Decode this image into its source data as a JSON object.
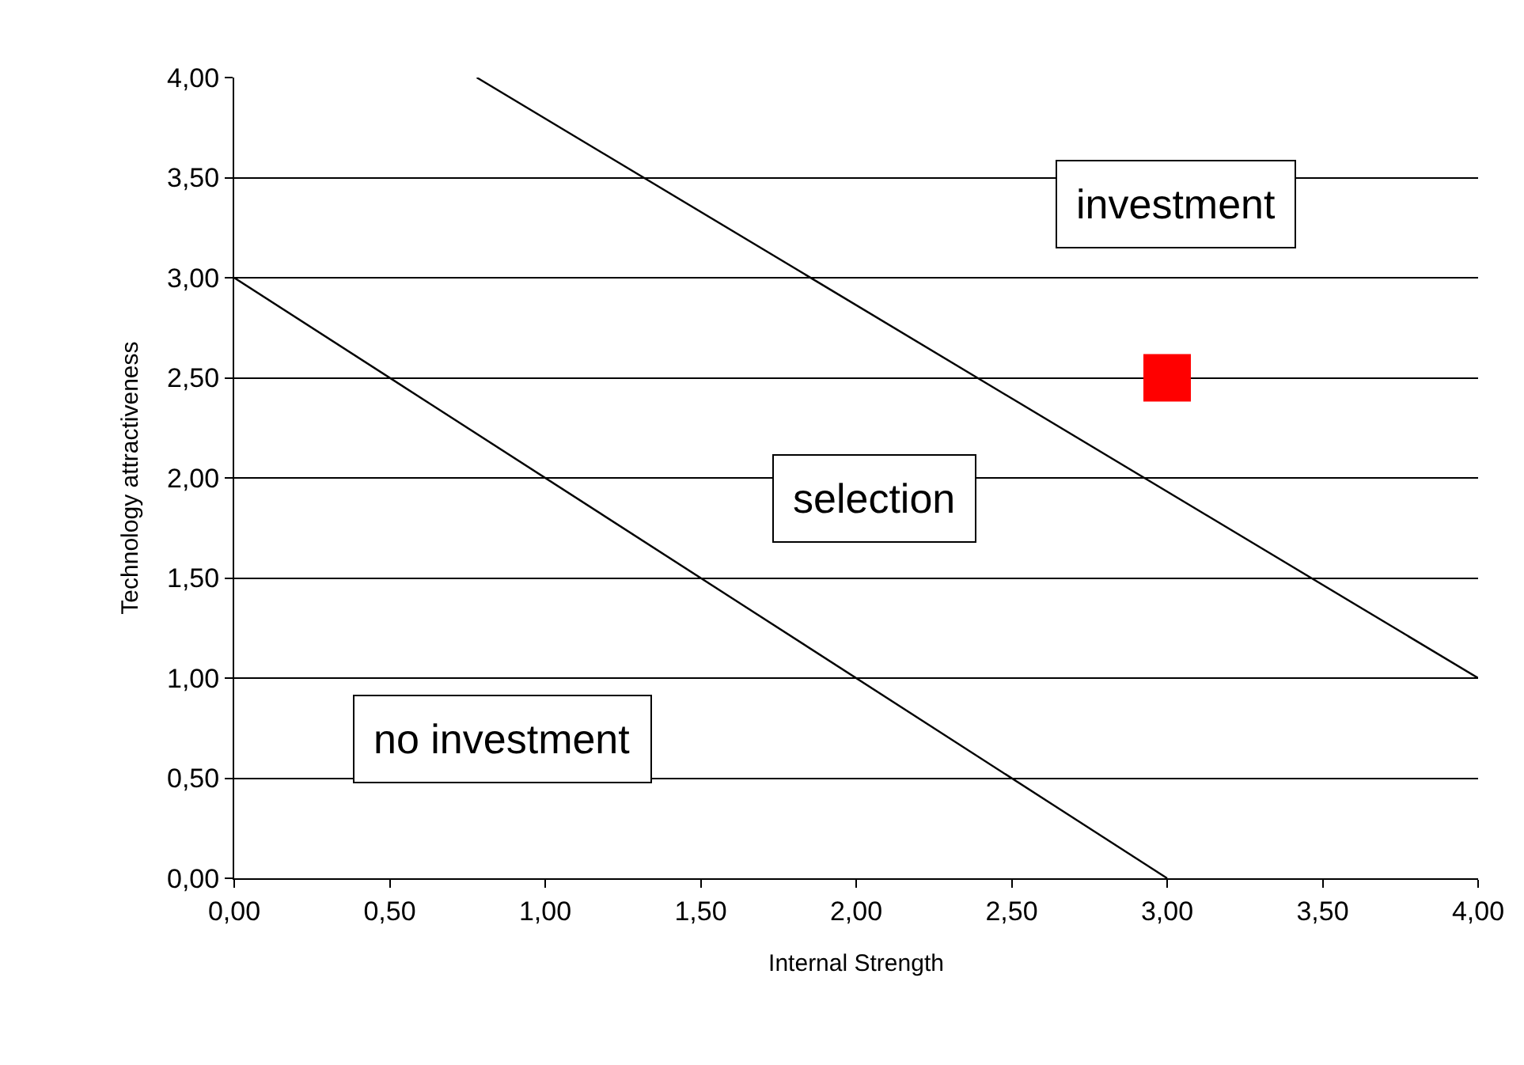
{
  "chart_data": {
    "type": "line",
    "xlabel": "Internal Strength",
    "ylabel": "Technology attractiveness",
    "xlim": [
      0,
      4
    ],
    "ylim": [
      0,
      4
    ],
    "xticks": [
      {
        "value": 0,
        "label": "0,00"
      },
      {
        "value": 0.5,
        "label": "0,50"
      },
      {
        "value": 1,
        "label": "1,00"
      },
      {
        "value": 1.5,
        "label": "1,50"
      },
      {
        "value": 2,
        "label": "2,00"
      },
      {
        "value": 2.5,
        "label": "2,50"
      },
      {
        "value": 3,
        "label": "3,00"
      },
      {
        "value": 3.5,
        "label": "3,50"
      },
      {
        "value": 4,
        "label": "4,00"
      }
    ],
    "yticks": [
      {
        "value": 0,
        "label": "0,00"
      },
      {
        "value": 0.5,
        "label": "0,50"
      },
      {
        "value": 1,
        "label": "1,00"
      },
      {
        "value": 1.5,
        "label": "1,50"
      },
      {
        "value": 2,
        "label": "2,00"
      },
      {
        "value": 2.5,
        "label": "2,50"
      },
      {
        "value": 3,
        "label": "3,00"
      },
      {
        "value": 3.5,
        "label": "3,50"
      },
      {
        "value": 4,
        "label": "4,00"
      }
    ],
    "grid": "y",
    "series": [
      {
        "color": "#000000",
        "marker": "none",
        "x": [
          0,
          3
        ],
        "values": [
          3,
          0
        ]
      },
      {
        "color": "#000000",
        "marker": "none",
        "x": [
          0.78,
          4
        ],
        "values": [
          4,
          1
        ]
      },
      {
        "type": "scatter",
        "color": "#ff0000",
        "marker": "square",
        "x": [
          3
        ],
        "values": [
          2.5
        ]
      }
    ],
    "annotations": [
      "investment",
      "selection",
      "no investment"
    ]
  }
}
